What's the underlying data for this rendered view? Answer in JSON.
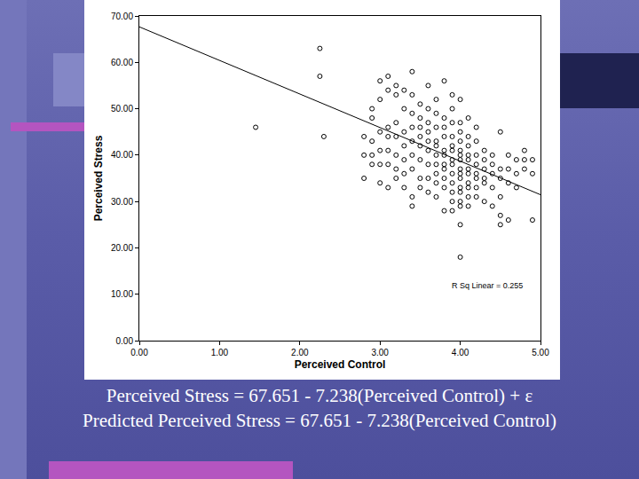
{
  "chart_data": {
    "type": "scatter",
    "x_label": "Perceived Control",
    "y_label": "Perceived Stress",
    "annotation": "R Sq Linear = 0.255",
    "equations": [
      "Perceived Stress = 67.651 - 7.238(Perceived Control) + ε",
      "Predicted Perceived Stress = 67.651 - 7.238(Perceived Control)"
    ],
    "regression": {
      "intercept": 67.651,
      "slope": -7.238,
      "color": "#000000",
      "line_style": "solid"
    },
    "color": "#000000",
    "marker": "circle-open",
    "grid": false,
    "xlim": [
      0,
      5
    ],
    "ylim": [
      0,
      70
    ],
    "xticks": [
      {
        "value": 0,
        "label": "0.00"
      },
      {
        "value": 1,
        "label": "1.00"
      },
      {
        "value": 2,
        "label": "2.00"
      },
      {
        "value": 3,
        "label": "3.00"
      },
      {
        "value": 4,
        "label": "4.00"
      },
      {
        "value": 5,
        "label": "5.00"
      }
    ],
    "yticks": [
      {
        "value": 0,
        "label": "0.00"
      },
      {
        "value": 10,
        "label": "10.00"
      },
      {
        "value": 20,
        "label": "20.00"
      },
      {
        "value": 30,
        "label": "30.00"
      },
      {
        "value": 40,
        "label": "40.00"
      },
      {
        "value": 50,
        "label": "50.00"
      },
      {
        "value": 60,
        "label": "60.00"
      },
      {
        "value": 70,
        "label": "70.00"
      }
    ],
    "x": [
      1.45,
      2.25,
      2.25,
      2.3,
      2.8,
      2.8,
      2.8,
      2.9,
      2.9,
      2.9,
      2.9,
      2.9,
      3.0,
      3.0,
      3.0,
      3.0,
      3.0,
      3.0,
      3.1,
      3.1,
      3.1,
      3.1,
      3.1,
      3.1,
      3.1,
      3.2,
      3.2,
      3.2,
      3.2,
      3.2,
      3.2,
      3.2,
      3.3,
      3.3,
      3.3,
      3.3,
      3.3,
      3.3,
      3.3,
      3.4,
      3.4,
      3.4,
      3.4,
      3.4,
      3.4,
      3.4,
      3.4,
      3.4,
      3.5,
      3.5,
      3.5,
      3.5,
      3.5,
      3.5,
      3.5,
      3.5,
      3.6,
      3.6,
      3.6,
      3.6,
      3.6,
      3.6,
      3.6,
      3.6,
      3.6,
      3.7,
      3.7,
      3.7,
      3.7,
      3.7,
      3.7,
      3.7,
      3.7,
      3.7,
      3.7,
      3.8,
      3.8,
      3.8,
      3.8,
      3.8,
      3.8,
      3.8,
      3.8,
      3.8,
      3.8,
      3.8,
      3.9,
      3.9,
      3.9,
      3.9,
      3.9,
      3.9,
      3.9,
      3.9,
      3.9,
      3.9,
      3.9,
      3.9,
      3.9,
      4.0,
      4.0,
      4.0,
      4.0,
      4.0,
      4.0,
      4.0,
      4.0,
      4.0,
      4.0,
      4.0,
      4.0,
      4.0,
      4.0,
      4.0,
      4.0,
      4.1,
      4.1,
      4.1,
      4.1,
      4.1,
      4.1,
      4.1,
      4.1,
      4.1,
      4.1,
      4.1,
      4.2,
      4.2,
      4.2,
      4.2,
      4.2,
      4.2,
      4.2,
      4.2,
      4.3,
      4.3,
      4.3,
      4.3,
      4.3,
      4.3,
      4.4,
      4.4,
      4.4,
      4.4,
      4.4,
      4.5,
      4.5,
      4.5,
      4.5,
      4.5,
      4.5,
      4.6,
      4.6,
      4.6,
      4.6,
      4.7,
      4.7,
      4.7,
      4.8,
      4.8,
      4.8,
      4.9,
      4.9,
      4.9
    ],
    "values": [
      46,
      63,
      57,
      44,
      44,
      40,
      35,
      38,
      40,
      50,
      48,
      43,
      56,
      52,
      45,
      41,
      38,
      34,
      57,
      54,
      46,
      44,
      41,
      38,
      33,
      55,
      53,
      47,
      44,
      40,
      37,
      35,
      54,
      50,
      45,
      42,
      39,
      36,
      33,
      58,
      53,
      49,
      46,
      43,
      40,
      37,
      31,
      29,
      51,
      48,
      46,
      44,
      42,
      39,
      35,
      33,
      55,
      50,
      47,
      45,
      43,
      41,
      38,
      35,
      32,
      52,
      49,
      46,
      43,
      42,
      40,
      38,
      36,
      34,
      31,
      56,
      48,
      46,
      44,
      41,
      40,
      38,
      37,
      35,
      33,
      28,
      53,
      50,
      47,
      44,
      42,
      41,
      39,
      38,
      36,
      34,
      32,
      30,
      28,
      52,
      47,
      45,
      43,
      41,
      40,
      39,
      37,
      36,
      35,
      33,
      32,
      30,
      29,
      25,
      18,
      48,
      44,
      42,
      40,
      39,
      37,
      36,
      34,
      33,
      31,
      29,
      46,
      43,
      40,
      38,
      36,
      35,
      33,
      31,
      41,
      39,
      37,
      35,
      34,
      30,
      40,
      38,
      36,
      33,
      29,
      45,
      37,
      35,
      31,
      27,
      25,
      40,
      37,
      34,
      26,
      39,
      36,
      33,
      41,
      39,
      37,
      39,
      36,
      26
    ]
  }
}
